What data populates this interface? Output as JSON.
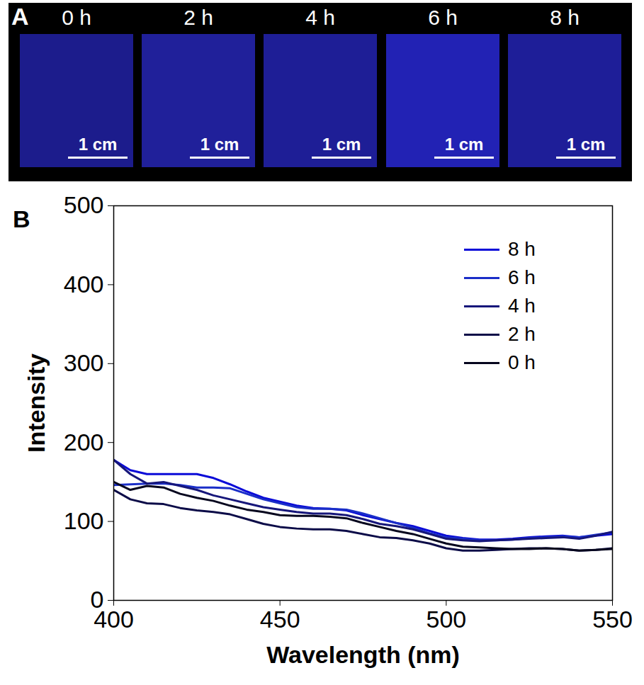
{
  "panel_letters": [
    "A",
    "B"
  ],
  "image_panel": {
    "background": "#000000",
    "tiles": [
      {
        "label": "0 h",
        "scale_bar": "1 cm",
        "color": "#1c1c8c"
      },
      {
        "label": "2 h",
        "scale_bar": "1 cm",
        "color": "#20209a"
      },
      {
        "label": "4 h",
        "scale_bar": "1 cm",
        "color": "#1e1e96"
      },
      {
        "label": "6 h",
        "scale_bar": "1 cm",
        "color": "#2222b4"
      },
      {
        "label": "8 h",
        "scale_bar": "1 cm",
        "color": "#1e1e98"
      }
    ]
  },
  "chart_data": {
    "type": "line",
    "x_label": "Wavelength (nm)",
    "y_label": "Intensity",
    "x": [
      400,
      405,
      410,
      415,
      420,
      425,
      430,
      435,
      440,
      445,
      450,
      455,
      460,
      465,
      470,
      475,
      480,
      485,
      490,
      495,
      500,
      505,
      510,
      515,
      520,
      525,
      530,
      535,
      540,
      545,
      550
    ],
    "xlim": [
      400,
      550
    ],
    "xticks": [
      400,
      450,
      500,
      550
    ],
    "ylim": [
      0,
      500
    ],
    "yticks": [
      0,
      100,
      200,
      300,
      400,
      500
    ],
    "legend": "top-right",
    "series": [
      {
        "name": "8 h",
        "color": "#0a0ad8",
        "values": [
          178,
          165,
          160,
          160,
          160,
          160,
          155,
          147,
          138,
          130,
          125,
          120,
          117,
          116,
          114,
          108,
          103,
          98,
          94,
          88,
          82,
          79,
          77,
          77,
          78,
          80,
          81,
          82,
          80,
          82,
          84
        ]
      },
      {
        "name": "6 h",
        "color": "#1a2ec8",
        "values": [
          146,
          147,
          148,
          148,
          146,
          143,
          143,
          142,
          135,
          128,
          123,
          118,
          116,
          116,
          115,
          110,
          104,
          98,
          92,
          85,
          80,
          78,
          76,
          76,
          77,
          79,
          80,
          81,
          80,
          83,
          86
        ]
      },
      {
        "name": "4 h",
        "color": "#16167a",
        "values": [
          178,
          160,
          148,
          150,
          145,
          140,
          133,
          128,
          123,
          118,
          115,
          112,
          110,
          110,
          108,
          103,
          97,
          94,
          90,
          84,
          78,
          76,
          75,
          76,
          77,
          78,
          79,
          80,
          78,
          82,
          87
        ]
      },
      {
        "name": "2 h",
        "color": "#0c0c48",
        "values": [
          140,
          128,
          123,
          122,
          117,
          114,
          112,
          109,
          103,
          97,
          93,
          91,
          90,
          90,
          88,
          84,
          80,
          79,
          76,
          72,
          66,
          63,
          63,
          64,
          65,
          66,
          66,
          65,
          63,
          64,
          66
        ]
      },
      {
        "name": "0 h",
        "color": "#06061e",
        "values": [
          150,
          140,
          145,
          143,
          135,
          130,
          126,
          120,
          115,
          112,
          108,
          107,
          107,
          106,
          104,
          98,
          93,
          88,
          84,
          78,
          72,
          68,
          67,
          66,
          65,
          65,
          66,
          65,
          63,
          64,
          65
        ]
      }
    ]
  }
}
